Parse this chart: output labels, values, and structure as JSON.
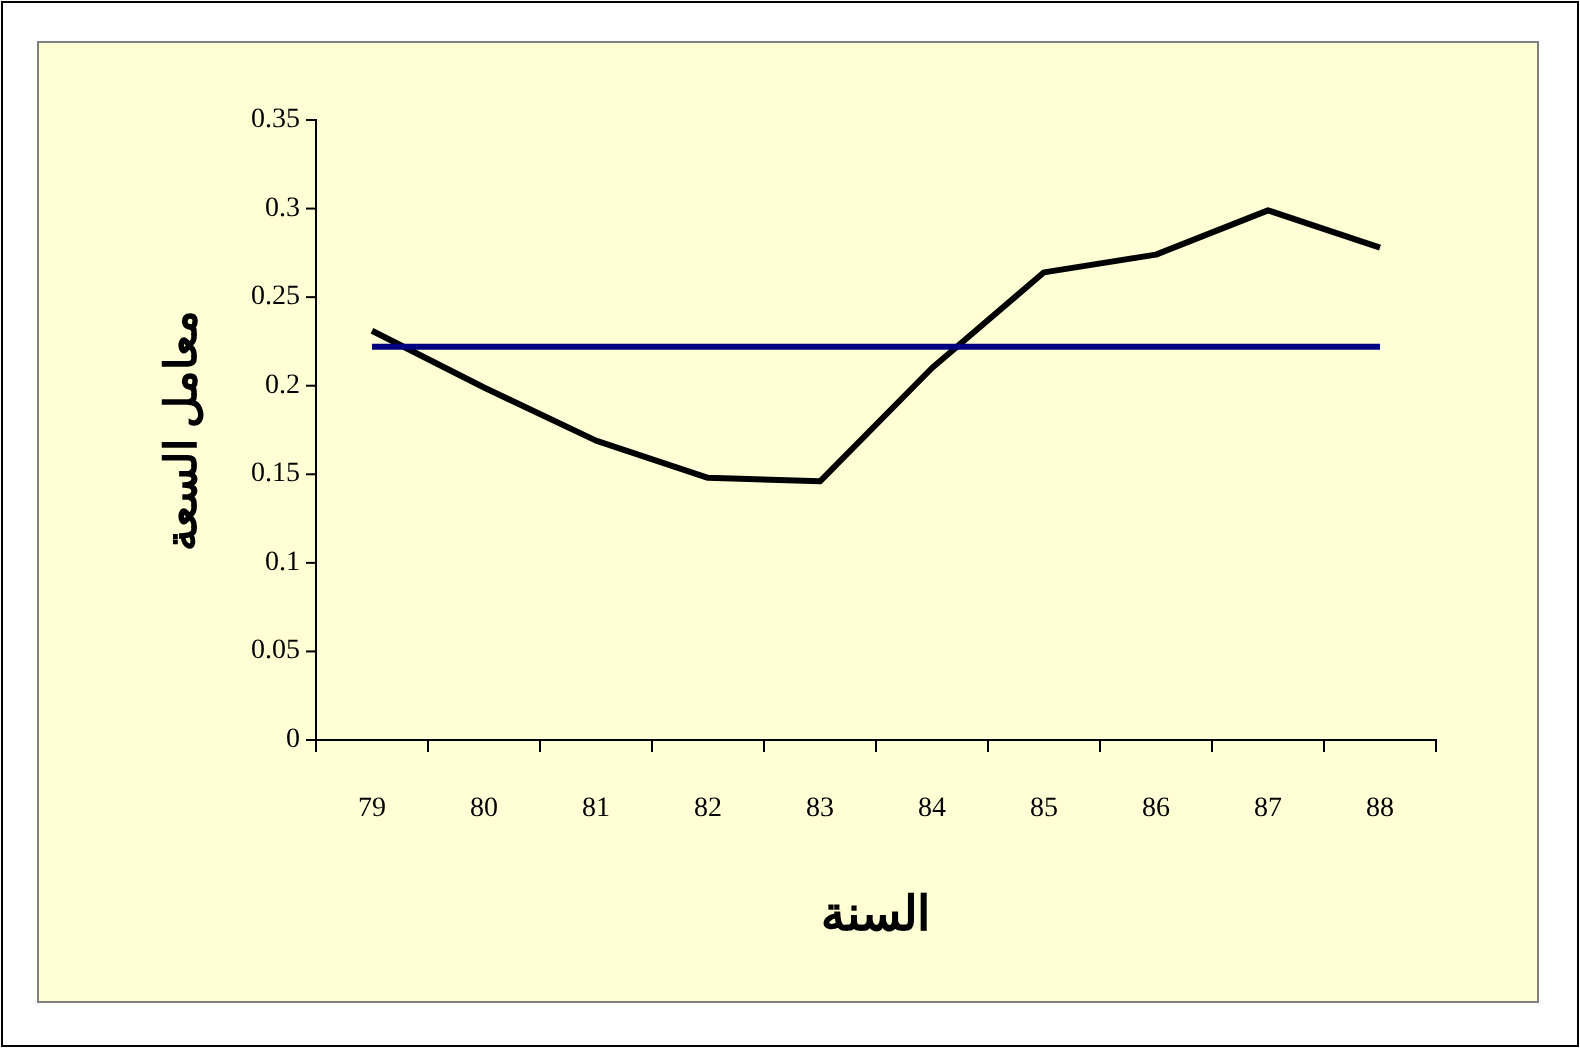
{
  "chart_data": {
    "type": "line",
    "xlabel": "السنة",
    "ylabel": "معامل السعة",
    "categories": [
      "79",
      "80",
      "81",
      "82",
      "83",
      "84",
      "85",
      "86",
      "87",
      "88"
    ],
    "series": [
      {
        "color": "#000000",
        "values": [
          0.231,
          0.199,
          0.169,
          0.148,
          0.146,
          0.21,
          0.264,
          0.274,
          0.299,
          0.278
        ]
      },
      {
        "color": "#000080",
        "values": [
          0.222,
          0.222,
          0.222,
          0.222,
          0.222,
          0.222,
          0.222,
          0.222,
          0.222,
          0.222
        ]
      }
    ],
    "ylim": [
      0,
      0.35
    ],
    "yticks": [
      0,
      0.05,
      0.1,
      0.15,
      0.2,
      0.25,
      0.3,
      0.35
    ],
    "grid": false,
    "marker": "none",
    "line_style": "solid"
  }
}
